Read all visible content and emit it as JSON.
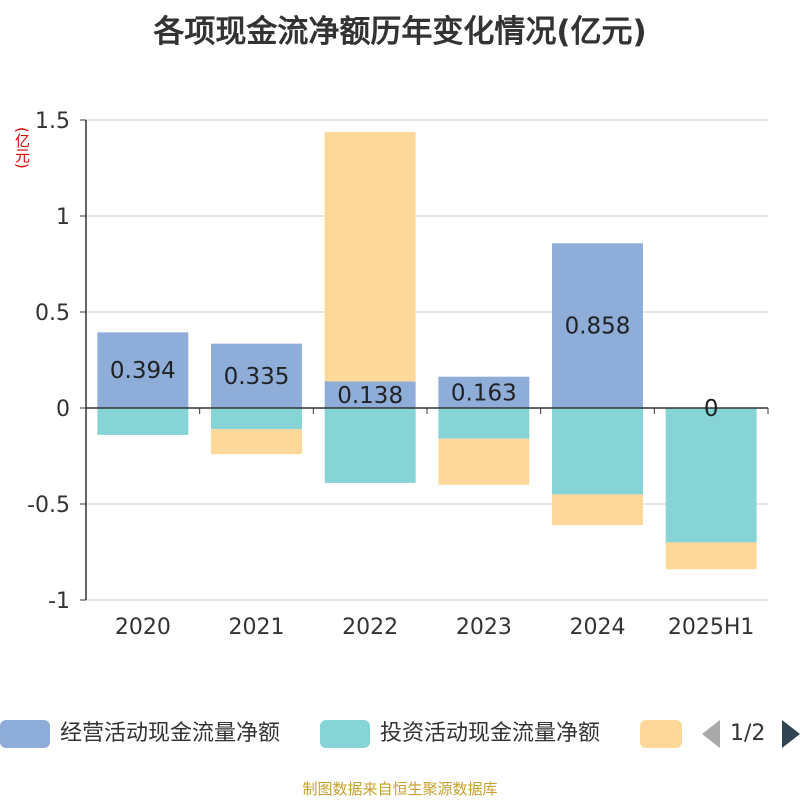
{
  "title": "各项现金流净额历年变化情况(亿元)",
  "unit": "(亿元)",
  "legend": {
    "items": [
      {
        "label": "经营活动现金流量净额",
        "color": "#8eadd9"
      },
      {
        "label": "投资活动现金流量净额",
        "color": "#86d4d6"
      },
      {
        "label": "",
        "color": "#fdd89a"
      }
    ],
    "page": "1/2"
  },
  "source": "制图数据来自恒生聚源数据库",
  "chart_data": {
    "type": "bar",
    "stacked": true,
    "categories": [
      "2020",
      "2021",
      "2022",
      "2023",
      "2024",
      "2025H1"
    ],
    "ylim": [
      -1,
      1.5
    ],
    "yticks": [
      -1,
      -0.5,
      0,
      0.5,
      1,
      1.5
    ],
    "ytick_labels": [
      "-1",
      "-0.5",
      "0",
      "0.5",
      "1",
      "1.5"
    ],
    "grid": true,
    "series": [
      {
        "name": "经营活动现金流量净额",
        "color": "#8eadd9",
        "values": [
          0.394,
          0.335,
          0.138,
          0.163,
          0.858,
          0
        ],
        "labels": [
          "0.394",
          "0.335",
          "0.138",
          "0.163",
          "0.858",
          "0"
        ]
      },
      {
        "name": "投资活动现金流量净额",
        "color": "#86d4d6",
        "values": [
          -0.14,
          -0.11,
          -0.39,
          -0.16,
          -0.45,
          -0.7
        ]
      },
      {
        "color": "#fdd89a",
        "values": [
          0,
          -0.13,
          1.3,
          -0.24,
          -0.16,
          -0.14
        ]
      }
    ]
  }
}
